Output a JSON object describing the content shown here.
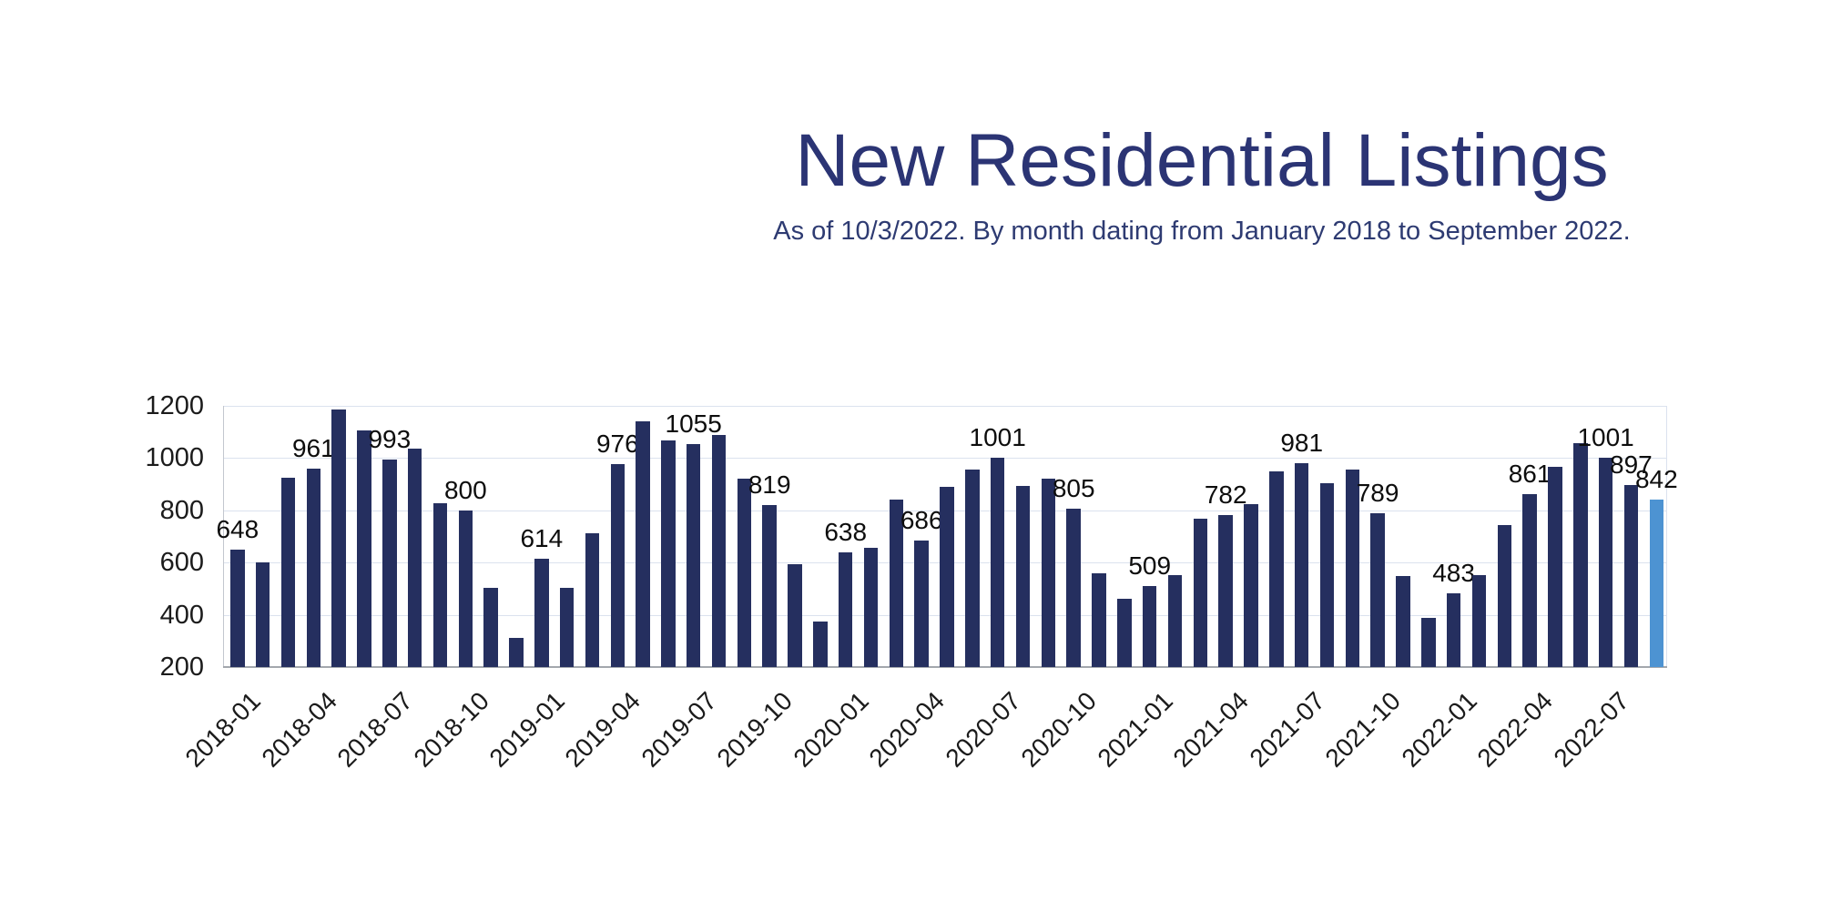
{
  "title": "New Residential Listings",
  "subtitle": "As of 10/3/2022. By month dating from January 2018 to September 2022.",
  "colors": {
    "title_text": "#2b3474",
    "subtitle_text": "#2e3b72",
    "bar": "#252f5f",
    "highlight_bar": "#4d93d2",
    "gridline": "#dbe2ee",
    "axis_line": "#a3a7ad",
    "tick_text": "#1b1b1b",
    "data_label_text": "#0d0d0d",
    "background": "#ffffff"
  },
  "chart_data": {
    "type": "bar",
    "title": "New Residential Listings",
    "subtitle": "As of 10/3/2022. By month dating from January 2018 to September 2022.",
    "xlabel": "",
    "ylabel": "",
    "ylim": [
      200,
      1200
    ],
    "yticks": [
      200,
      400,
      600,
      800,
      1000,
      1200
    ],
    "grid": true,
    "legend": false,
    "x": [
      "2018-01",
      "2018-02",
      "2018-03",
      "2018-04",
      "2018-05",
      "2018-06",
      "2018-07",
      "2018-08",
      "2018-09",
      "2018-10",
      "2018-11",
      "2018-12",
      "2019-01",
      "2019-02",
      "2019-03",
      "2019-04",
      "2019-05",
      "2019-06",
      "2019-07",
      "2019-08",
      "2019-09",
      "2019-10",
      "2019-11",
      "2019-12",
      "2020-01",
      "2020-02",
      "2020-03",
      "2020-04",
      "2020-05",
      "2020-06",
      "2020-07",
      "2020-08",
      "2020-09",
      "2020-10",
      "2020-11",
      "2020-12",
      "2021-01",
      "2021-02",
      "2021-03",
      "2021-04",
      "2021-05",
      "2021-06",
      "2021-07",
      "2021-08",
      "2021-09",
      "2021-10",
      "2021-11",
      "2021-12",
      "2022-01",
      "2022-02",
      "2022-03",
      "2022-04",
      "2022-05",
      "2022-06",
      "2022-07",
      "2022-08",
      "2022-09"
    ],
    "values": [
      648,
      600,
      925,
      961,
      1185,
      1105,
      993,
      1038,
      828,
      800,
      505,
      312,
      614,
      505,
      712,
      976,
      1142,
      1068,
      1055,
      1090,
      920,
      819,
      595,
      375,
      638,
      658,
      840,
      686,
      890,
      958,
      1001,
      895,
      920,
      805,
      558,
      462,
      509,
      552,
      768,
      782,
      825,
      950,
      981,
      905,
      955,
      789,
      550,
      388,
      483,
      552,
      745,
      861,
      968,
      1058,
      1001,
      897,
      842
    ],
    "labeled_months": [
      "2018-01",
      "2018-04",
      "2018-07",
      "2018-10",
      "2019-01",
      "2019-04",
      "2019-07",
      "2019-10",
      "2020-01",
      "2020-04",
      "2020-07",
      "2020-10",
      "2021-01",
      "2021-04",
      "2021-07",
      "2021-10",
      "2022-01",
      "2022-04",
      "2022-07",
      "2022-08",
      "2022-09"
    ],
    "xtick_labels": [
      "2018-01",
      "2018-04",
      "2018-07",
      "2018-10",
      "2019-01",
      "2019-04",
      "2019-07",
      "2019-10",
      "2020-01",
      "2020-04",
      "2020-07",
      "2020-10",
      "2021-01",
      "2021-04",
      "2021-07",
      "2021-10",
      "2022-01",
      "2022-04",
      "2022-07"
    ],
    "highlight_month": "2022-09"
  }
}
